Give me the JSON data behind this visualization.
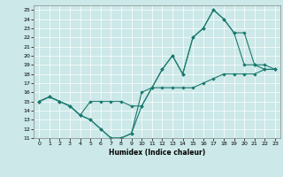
{
  "xlabel": "Humidex (Indice chaleur)",
  "ylabel": "",
  "xlim": [
    -0.5,
    23.5
  ],
  "ylim": [
    11,
    25.5
  ],
  "yticks": [
    11,
    12,
    13,
    14,
    15,
    16,
    17,
    18,
    19,
    20,
    21,
    22,
    23,
    24,
    25
  ],
  "xticks": [
    0,
    1,
    2,
    3,
    4,
    5,
    6,
    7,
    8,
    9,
    10,
    11,
    12,
    13,
    14,
    15,
    16,
    17,
    18,
    19,
    20,
    21,
    22,
    23
  ],
  "bg_color": "#cce8e8",
  "grid_color": "#ffffff",
  "line_color": "#1a7a6e",
  "line1_x": [
    0,
    1,
    2,
    3,
    4,
    5,
    6,
    7,
    8,
    9,
    10,
    11,
    12,
    13,
    14,
    15,
    16,
    17,
    18,
    19,
    20,
    21,
    22,
    23
  ],
  "line1_y": [
    15,
    15.5,
    15,
    14.5,
    13.5,
    13,
    12,
    11,
    11,
    11.5,
    14.5,
    16.5,
    18.5,
    20,
    18,
    22,
    23,
    25,
    24,
    22.5,
    19,
    19,
    18.5,
    18.5
  ],
  "line2_x": [
    0,
    1,
    2,
    3,
    4,
    5,
    6,
    7,
    8,
    9,
    10,
    11,
    12,
    13,
    14,
    15,
    16,
    17,
    18,
    19,
    20,
    21,
    22,
    23
  ],
  "line2_y": [
    15,
    15.5,
    15,
    14.5,
    13.5,
    15,
    15,
    15,
    15,
    14.5,
    14.5,
    16.5,
    18.5,
    20,
    18,
    22,
    23,
    25,
    24,
    22.5,
    22.5,
    19,
    19,
    18.5
  ],
  "line3_x": [
    0,
    1,
    2,
    3,
    4,
    5,
    6,
    7,
    8,
    9,
    10,
    11,
    12,
    13,
    14,
    15,
    16,
    17,
    18,
    19,
    20,
    21,
    22,
    23
  ],
  "line3_y": [
    15,
    15.5,
    15,
    14.5,
    13.5,
    13,
    12,
    11,
    11,
    11.5,
    16,
    16.5,
    16.5,
    16.5,
    16.5,
    16.5,
    17,
    17.5,
    18,
    18,
    18,
    18,
    18.5,
    18.5
  ]
}
